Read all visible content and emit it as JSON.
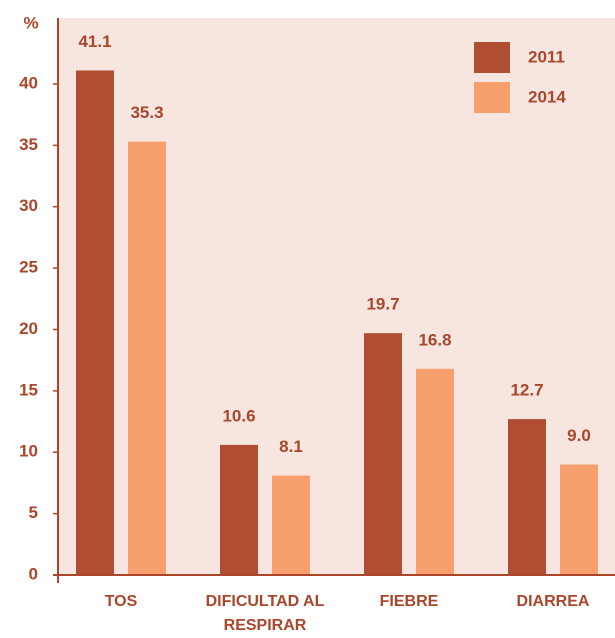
{
  "chart_data": {
    "type": "bar",
    "y_label": "%",
    "categories": [
      "TOS",
      "DIFICULTAD AL RESPIRAR",
      "FIEBRE",
      "DIARREA"
    ],
    "series": [
      {
        "name": "2011",
        "color": "#b04e31",
        "values": [
          41.1,
          10.6,
          19.7,
          12.7
        ]
      },
      {
        "name": "2014",
        "color": "#f7a06e",
        "values": [
          35.3,
          8.1,
          16.8,
          9.0
        ],
        "value_labels": [
          "35.3",
          "8.1",
          "16.8",
          "9.0"
        ]
      }
    ],
    "ylim": [
      0,
      45
    ],
    "yticks": [
      0,
      5,
      10,
      15,
      20,
      25,
      30,
      35,
      40
    ],
    "legend": "top-right"
  }
}
